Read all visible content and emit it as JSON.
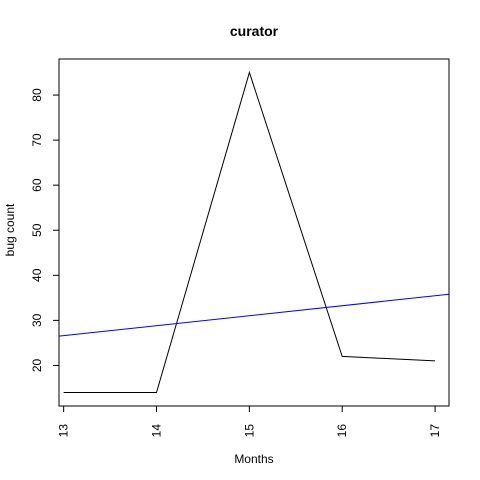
{
  "chart_data": {
    "type": "line",
    "title": "curator",
    "xlabel": "Months",
    "ylabel": "bug count",
    "xlim": [
      12.95,
      17.15
    ],
    "ylim": [
      11.0,
      88.0
    ],
    "x_ticks": [
      13,
      14,
      15,
      16,
      17
    ],
    "y_ticks": [
      20,
      30,
      40,
      50,
      60,
      70,
      80
    ],
    "grid": false,
    "series": [
      {
        "x": [
          13,
          14,
          15,
          16,
          17
        ],
        "values": [
          14,
          14,
          85,
          22,
          21
        ],
        "color": "#000000"
      }
    ],
    "trend_line": {
      "x": [
        12.95,
        17.15
      ],
      "values": [
        26.5,
        35.8
      ],
      "color": "#0000ff"
    }
  }
}
